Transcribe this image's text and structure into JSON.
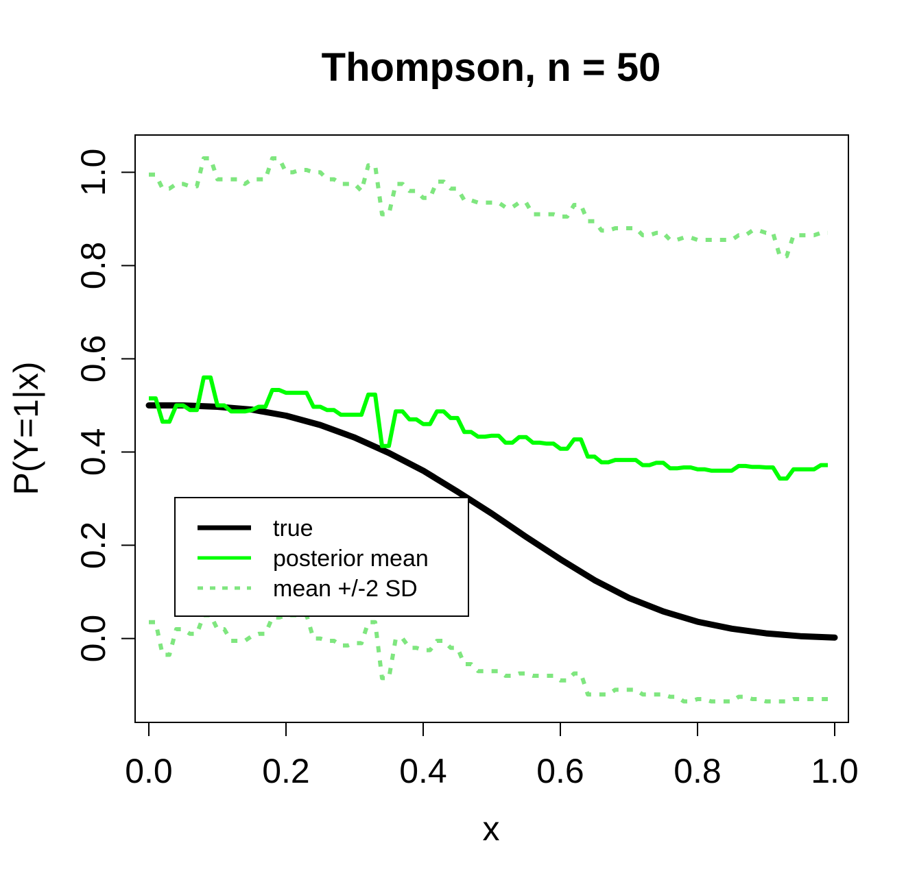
{
  "chart_data": {
    "type": "line",
    "title": "Thompson, n =  50",
    "xlabel": "x",
    "ylabel": "P(Y=1|x)",
    "xlim": [
      -0.02,
      1.02
    ],
    "ylim": [
      -0.18,
      1.08
    ],
    "x_ticks": [
      0.0,
      0.2,
      0.4,
      0.6,
      0.8,
      1.0
    ],
    "x_tick_labels": [
      "0.0",
      "0.2",
      "0.4",
      "0.6",
      "0.8",
      "1.0"
    ],
    "y_ticks": [
      0.0,
      0.2,
      0.4,
      0.6,
      0.8,
      1.0
    ],
    "y_tick_labels": [
      "0.0",
      "0.2",
      "0.4",
      "0.6",
      "0.8",
      "1.0"
    ],
    "grid": false,
    "legend_position": "middle-left",
    "series": [
      {
        "name": "true",
        "color": "#000000",
        "style": "solid",
        "x": [
          0.0,
          0.05,
          0.1,
          0.15,
          0.2,
          0.25,
          0.3,
          0.35,
          0.4,
          0.45,
          0.5,
          0.55,
          0.6,
          0.65,
          0.7,
          0.75,
          0.8,
          0.85,
          0.9,
          0.95,
          1.0
        ],
        "values": [
          0.5,
          0.5,
          0.497,
          0.491,
          0.478,
          0.458,
          0.431,
          0.398,
          0.36,
          0.315,
          0.268,
          0.218,
          0.17,
          0.125,
          0.087,
          0.058,
          0.036,
          0.021,
          0.011,
          0.005,
          0.002
        ]
      },
      {
        "name": "posterior mean",
        "color": "#00ff00",
        "style": "solid",
        "x": [
          0.0,
          0.01,
          0.02,
          0.03,
          0.04,
          0.05,
          0.06,
          0.07,
          0.08,
          0.09,
          0.1,
          0.11,
          0.12,
          0.13,
          0.14,
          0.15,
          0.16,
          0.17,
          0.18,
          0.19,
          0.2,
          0.21,
          0.22,
          0.23,
          0.24,
          0.25,
          0.26,
          0.27,
          0.28,
          0.29,
          0.3,
          0.31,
          0.32,
          0.33,
          0.34,
          0.35,
          0.36,
          0.37,
          0.38,
          0.39,
          0.4,
          0.41,
          0.42,
          0.43,
          0.44,
          0.45,
          0.46,
          0.47,
          0.48,
          0.49,
          0.5,
          0.51,
          0.52,
          0.53,
          0.54,
          0.55,
          0.56,
          0.57,
          0.58,
          0.59,
          0.6,
          0.61,
          0.62,
          0.63,
          0.64,
          0.65,
          0.66,
          0.67,
          0.68,
          0.69,
          0.7,
          0.71,
          0.72,
          0.73,
          0.74,
          0.75,
          0.76,
          0.77,
          0.78,
          0.79,
          0.8,
          0.81,
          0.82,
          0.83,
          0.84,
          0.85,
          0.86,
          0.87,
          0.88,
          0.89,
          0.9,
          0.91,
          0.92,
          0.93,
          0.94,
          0.95,
          0.96,
          0.97,
          0.98,
          0.99
        ],
        "values": [
          0.515,
          0.515,
          0.465,
          0.465,
          0.5,
          0.5,
          0.49,
          0.49,
          0.56,
          0.56,
          0.5,
          0.5,
          0.487,
          0.487,
          0.487,
          0.49,
          0.497,
          0.497,
          0.533,
          0.533,
          0.527,
          0.527,
          0.527,
          0.527,
          0.497,
          0.497,
          0.49,
          0.49,
          0.48,
          0.48,
          0.48,
          0.48,
          0.523,
          0.523,
          0.413,
          0.413,
          0.487,
          0.487,
          0.47,
          0.47,
          0.46,
          0.46,
          0.487,
          0.487,
          0.473,
          0.473,
          0.443,
          0.443,
          0.433,
          0.433,
          0.435,
          0.435,
          0.42,
          0.42,
          0.432,
          0.432,
          0.42,
          0.42,
          0.418,
          0.418,
          0.407,
          0.407,
          0.427,
          0.427,
          0.39,
          0.39,
          0.378,
          0.378,
          0.383,
          0.383,
          0.383,
          0.383,
          0.372,
          0.372,
          0.377,
          0.377,
          0.365,
          0.365,
          0.367,
          0.367,
          0.363,
          0.363,
          0.36,
          0.36,
          0.36,
          0.36,
          0.37,
          0.37,
          0.368,
          0.368,
          0.367,
          0.367,
          0.343,
          0.343,
          0.363,
          0.363,
          0.363,
          0.363,
          0.372,
          0.372
        ]
      },
      {
        "name": "mean +/-2 SD",
        "color": "#7fe67f",
        "style": "dotted",
        "x": [
          0.0,
          0.01,
          0.02,
          0.03,
          0.04,
          0.05,
          0.06,
          0.07,
          0.08,
          0.09,
          0.1,
          0.11,
          0.12,
          0.13,
          0.14,
          0.15,
          0.16,
          0.17,
          0.18,
          0.19,
          0.2,
          0.21,
          0.22,
          0.23,
          0.24,
          0.25,
          0.26,
          0.27,
          0.28,
          0.29,
          0.3,
          0.31,
          0.32,
          0.33,
          0.34,
          0.35,
          0.36,
          0.37,
          0.38,
          0.39,
          0.4,
          0.41,
          0.42,
          0.43,
          0.44,
          0.45,
          0.46,
          0.47,
          0.48,
          0.49,
          0.5,
          0.51,
          0.52,
          0.53,
          0.54,
          0.55,
          0.56,
          0.57,
          0.58,
          0.59,
          0.6,
          0.61,
          0.62,
          0.63,
          0.64,
          0.65,
          0.66,
          0.67,
          0.68,
          0.69,
          0.7,
          0.71,
          0.72,
          0.73,
          0.74,
          0.75,
          0.76,
          0.77,
          0.78,
          0.79,
          0.8,
          0.81,
          0.82,
          0.83,
          0.84,
          0.85,
          0.86,
          0.87,
          0.88,
          0.89,
          0.9,
          0.91,
          0.92,
          0.93,
          0.94,
          0.95,
          0.96,
          0.97,
          0.98,
          0.99
        ],
        "values": [
          0.995,
          0.995,
          0.965,
          0.965,
          0.975,
          0.975,
          0.97,
          0.97,
          1.03,
          1.03,
          0.985,
          0.985,
          0.985,
          0.985,
          0.975,
          0.985,
          0.985,
          0.985,
          1.03,
          1.03,
          1.0,
          1.0,
          1.005,
          1.005,
          1.0,
          1.0,
          0.985,
          0.985,
          0.975,
          0.975,
          0.975,
          0.96,
          1.015,
          1.015,
          0.91,
          0.91,
          0.975,
          0.975,
          0.96,
          0.96,
          0.945,
          0.945,
          0.98,
          0.98,
          0.965,
          0.965,
          0.94,
          0.94,
          0.935,
          0.935,
          0.935,
          0.935,
          0.925,
          0.925,
          0.935,
          0.935,
          0.91,
          0.91,
          0.91,
          0.91,
          0.905,
          0.905,
          0.93,
          0.93,
          0.895,
          0.895,
          0.875,
          0.875,
          0.88,
          0.88,
          0.88,
          0.88,
          0.865,
          0.865,
          0.87,
          0.87,
          0.855,
          0.855,
          0.86,
          0.86,
          0.855,
          0.855,
          0.855,
          0.855,
          0.855,
          0.855,
          0.865,
          0.865,
          0.875,
          0.875,
          0.87,
          0.87,
          0.82,
          0.82,
          0.865,
          0.865,
          0.865,
          0.865,
          0.87,
          0.87
        ]
      },
      {
        "name": "mean +/-2 SD lower",
        "color": "#7fe67f",
        "style": "dotted",
        "x": [
          0.0,
          0.01,
          0.02,
          0.03,
          0.04,
          0.05,
          0.06,
          0.07,
          0.08,
          0.09,
          0.1,
          0.11,
          0.12,
          0.13,
          0.14,
          0.15,
          0.16,
          0.17,
          0.18,
          0.19,
          0.2,
          0.21,
          0.22,
          0.23,
          0.24,
          0.25,
          0.26,
          0.27,
          0.28,
          0.29,
          0.3,
          0.31,
          0.32,
          0.33,
          0.34,
          0.35,
          0.36,
          0.37,
          0.38,
          0.39,
          0.4,
          0.41,
          0.42,
          0.43,
          0.44,
          0.45,
          0.46,
          0.47,
          0.48,
          0.49,
          0.5,
          0.51,
          0.52,
          0.53,
          0.54,
          0.55,
          0.56,
          0.57,
          0.58,
          0.59,
          0.6,
          0.61,
          0.62,
          0.63,
          0.64,
          0.65,
          0.66,
          0.67,
          0.68,
          0.69,
          0.7,
          0.71,
          0.72,
          0.73,
          0.74,
          0.75,
          0.76,
          0.77,
          0.78,
          0.79,
          0.8,
          0.81,
          0.82,
          0.83,
          0.84,
          0.85,
          0.86,
          0.87,
          0.88,
          0.89,
          0.9,
          0.91,
          0.92,
          0.93,
          0.94,
          0.95,
          0.96,
          0.97,
          0.98,
          0.99
        ],
        "values": [
          0.035,
          0.035,
          -0.035,
          -0.035,
          0.02,
          0.02,
          0.01,
          0.01,
          0.05,
          0.05,
          0.02,
          0.02,
          -0.005,
          -0.005,
          -0.005,
          0.005,
          0.01,
          0.01,
          0.045,
          0.045,
          0.05,
          0.05,
          0.05,
          0.05,
          0.0,
          0.0,
          -0.005,
          -0.005,
          -0.015,
          -0.015,
          -0.01,
          -0.01,
          0.035,
          0.035,
          -0.085,
          -0.085,
          0.0,
          0.0,
          -0.02,
          -0.02,
          -0.025,
          -0.025,
          -0.005,
          -0.005,
          -0.02,
          -0.02,
          -0.055,
          -0.055,
          -0.07,
          -0.07,
          -0.07,
          -0.07,
          -0.08,
          -0.08,
          -0.075,
          -0.075,
          -0.08,
          -0.08,
          -0.08,
          -0.08,
          -0.09,
          -0.09,
          -0.075,
          -0.075,
          -0.12,
          -0.12,
          -0.12,
          -0.12,
          -0.11,
          -0.11,
          -0.11,
          -0.11,
          -0.12,
          -0.12,
          -0.12,
          -0.12,
          -0.125,
          -0.125,
          -0.135,
          -0.135,
          -0.13,
          -0.13,
          -0.135,
          -0.135,
          -0.135,
          -0.135,
          -0.125,
          -0.125,
          -0.13,
          -0.13,
          -0.135,
          -0.135,
          -0.135,
          -0.135,
          -0.13,
          -0.13,
          -0.13,
          -0.13,
          -0.13,
          -0.13
        ]
      }
    ],
    "legend": [
      {
        "label": "true",
        "color": "#000000",
        "style": "solid",
        "weight": "thick"
      },
      {
        "label": "posterior mean",
        "color": "#00ff00",
        "style": "solid",
        "weight": "medium"
      },
      {
        "label": "mean +/-2 SD",
        "color": "#7fe67f",
        "style": "dotted",
        "weight": "medium"
      }
    ]
  }
}
